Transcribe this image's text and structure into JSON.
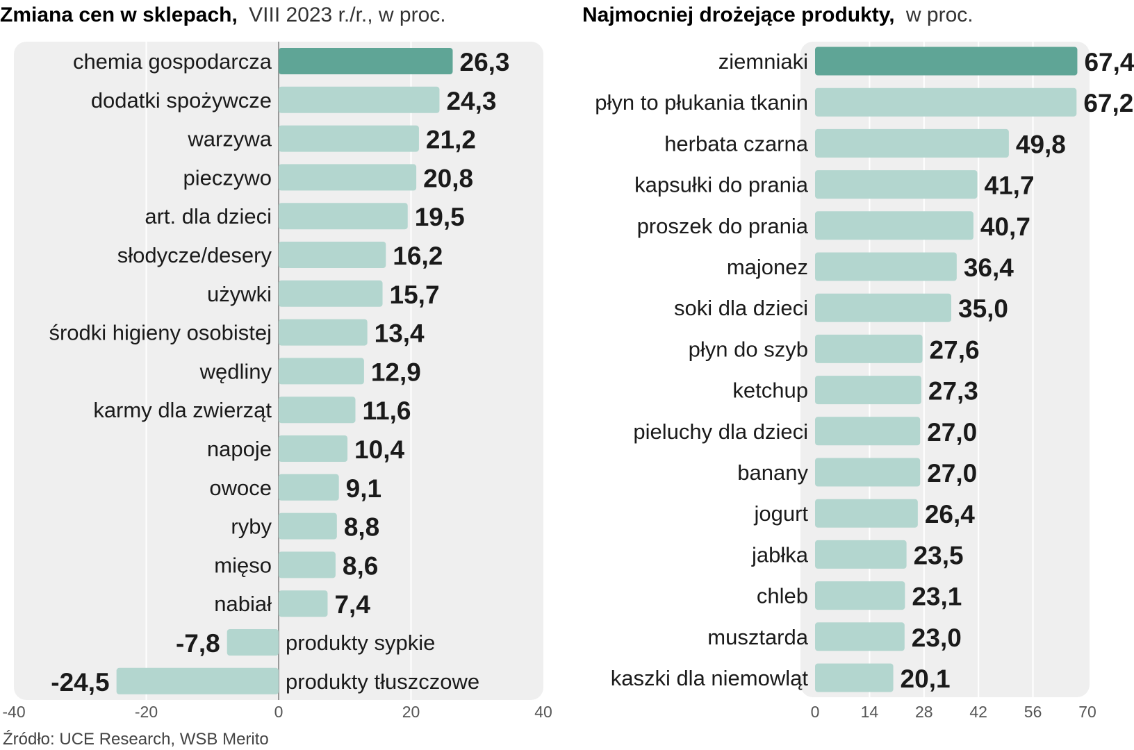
{
  "chart_data": [
    {
      "type": "bar",
      "orientation": "horizontal",
      "title": "Zmiana cen w sklepach,",
      "subtitle": "VIII 2023 r./r., w proc.",
      "categories": [
        "chemia gospodarcza",
        "dodatki spożywcze",
        "warzywa",
        "pieczywo",
        "art. dla dzieci",
        "słodycze/desery",
        "używki",
        "środki higieny osobistej",
        "wędliny",
        "karmy dla zwierząt",
        "napoje",
        "owoce",
        "ryby",
        "mięso",
        "nabiał",
        "produkty sypkie",
        "produkty tłuszczowe"
      ],
      "values": [
        26.3,
        24.3,
        21.2,
        20.8,
        19.5,
        16.2,
        15.7,
        13.4,
        12.9,
        11.6,
        10.4,
        9.1,
        8.8,
        8.6,
        7.4,
        -7.8,
        -24.5
      ],
      "value_labels": [
        "26,3",
        "24,3",
        "21,2",
        "20,8",
        "19,5",
        "16,2",
        "15,7",
        "13,4",
        "12,9",
        "11,6",
        "10,4",
        "9,1",
        "8,8",
        "8,6",
        "7,4",
        "-7,8",
        "-24,5"
      ],
      "highlight_index": 0,
      "xlim": [
        -40,
        40
      ],
      "xticks": [
        -40,
        -20,
        0,
        20,
        40
      ],
      "xtick_labels": [
        "-40",
        "-20",
        "0",
        "20",
        "40"
      ],
      "grid": true
    },
    {
      "type": "bar",
      "orientation": "horizontal",
      "title": "Najmocniej drożejące produkty,",
      "subtitle": "w proc.",
      "categories": [
        "ziemniaki",
        "płyn to płukania tkanin",
        "herbata czarna",
        "kapsułki do prania",
        "proszek do prania",
        "majonez",
        "soki dla dzieci",
        "płyn do szyb",
        "ketchup",
        "pieluchy dla dzieci",
        "banany",
        "jogurt",
        "jabłka",
        "chleb",
        "musztarda",
        "kaszki dla niemowląt"
      ],
      "values": [
        67.4,
        67.2,
        49.8,
        41.7,
        40.7,
        36.4,
        35.0,
        27.6,
        27.3,
        27.0,
        27.0,
        26.4,
        23.5,
        23.1,
        23.0,
        20.1
      ],
      "value_labels": [
        "67,4",
        "67,2",
        "49,8",
        "41,7",
        "40,7",
        "36,4",
        "35,0",
        "27,6",
        "27,3",
        "27,0",
        "27,0",
        "26,4",
        "23,5",
        "23,1",
        "23,0",
        "20,1"
      ],
      "highlight_index": 0,
      "xlim": [
        0,
        70
      ],
      "xticks": [
        0,
        14,
        28,
        42,
        56,
        70
      ],
      "xtick_labels": [
        "0",
        "14",
        "28",
        "42",
        "56",
        "70"
      ],
      "grid": true
    }
  ],
  "source": "Źródło:  UCE Research, WSB Merito",
  "colors": {
    "panel": "#efefef",
    "bar": "#b3d6cf",
    "highlight": "#5fa596",
    "grid": "#ffffff",
    "axis": "#999999"
  }
}
